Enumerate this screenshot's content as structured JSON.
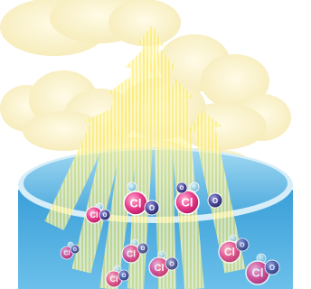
{
  "colors": {
    "sky": "#ffffff",
    "cloud": "#fbf4cf",
    "cloud_edge": "#f3e7ae",
    "arrow": "#fcec6a",
    "arrow_tip": "#f7d94a",
    "pool_top": "#7fc8ec",
    "pool_side": "#3a9fd8",
    "pool_rim": "#d7eef8",
    "chlorine": "#e83a8a",
    "oxygen": "#4a4a9a",
    "small_atom": "#8fd0e6"
  },
  "atom_labels": {
    "chlorine": "Cl",
    "oxygen": "O"
  },
  "molecules": [
    {
      "kind": "cl-o",
      "depth": "surface"
    },
    {
      "kind": "cl-o",
      "depth": "surface"
    },
    {
      "kind": "cl-o",
      "depth": "surface"
    },
    {
      "kind": "o",
      "depth": "surface"
    },
    {
      "kind": "cl-o",
      "depth": "underwater"
    },
    {
      "kind": "cl-o",
      "depth": "underwater"
    },
    {
      "kind": "cl-o",
      "depth": "underwater"
    },
    {
      "kind": "cl-o",
      "depth": "underwater"
    },
    {
      "kind": "cl-o",
      "depth": "underwater"
    },
    {
      "kind": "cl-o",
      "depth": "underwater"
    }
  ],
  "arrows_count_label": "",
  "icons": [
    "cloud-icon",
    "upward-arrow-icon",
    "pool-icon",
    "chlorine-atom-icon",
    "oxygen-atom-icon"
  ]
}
